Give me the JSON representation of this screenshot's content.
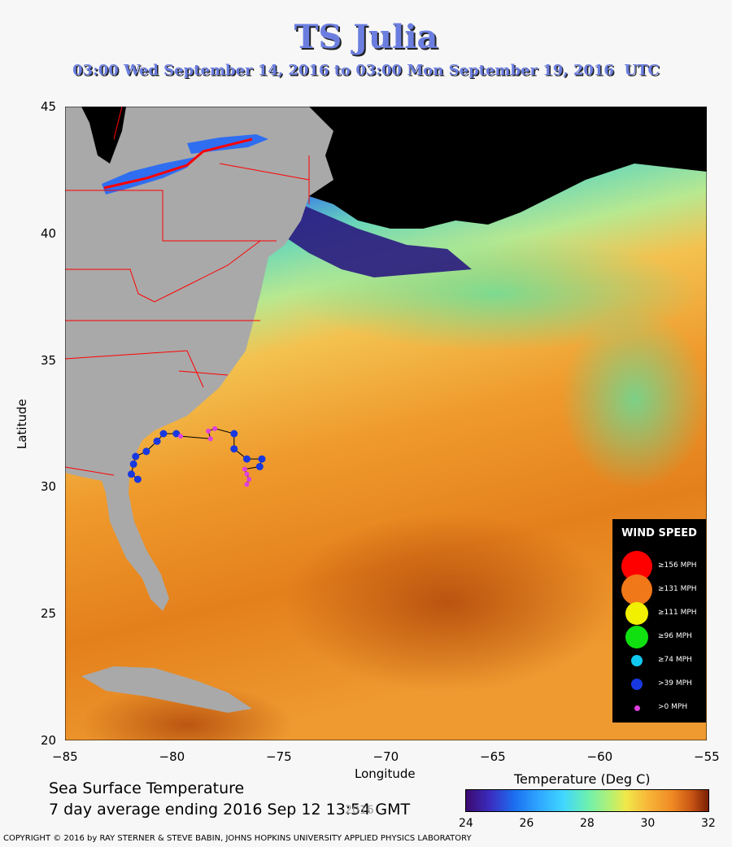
{
  "header": {
    "title": "TS Julia",
    "subtitle": "03:00 Wed September 14, 2016 to 03:00 Mon September 19, 2016  UTC"
  },
  "axes": {
    "x_label": "Longitude",
    "y_label": "Latitude",
    "x_ticks": [
      "−85",
      "−80",
      "−75",
      "−70",
      "−65",
      "−60",
      "−55"
    ],
    "y_ticks": [
      "45",
      "40",
      "35",
      "30",
      "25",
      "20"
    ],
    "lon_range": [
      -85,
      -55
    ],
    "lat_range": [
      20,
      45
    ]
  },
  "caption": {
    "line1": "Sea Surface Temperature",
    "line2": "7 day average ending 2016 Sep 12 13:54 GMT",
    "watermark": "2016"
  },
  "colorbar": {
    "title": "Temperature (Deg C)",
    "ticks": [
      "24",
      "26",
      "28",
      "30",
      "32"
    ],
    "range": [
      24,
      32
    ]
  },
  "legend": {
    "title": "WIND SPEED",
    "items": [
      {
        "label": "≥156 MPH",
        "color": "#ff0000",
        "size": "large"
      },
      {
        "label": "≥131 MPH",
        "color": "#f07818",
        "size": "large"
      },
      {
        "label": "≥111 MPH",
        "color": "#f0f000",
        "size": "medium"
      },
      {
        "label": "≥96 MPH",
        "color": "#10e010",
        "size": "medium"
      },
      {
        "label": "≥74 MPH",
        "color": "#10c8f0",
        "size": "small"
      },
      {
        "label": ">39 MPH",
        "color": "#1838e0",
        "size": "small"
      },
      {
        "label": ">0 MPH",
        "color": "#e040e0",
        "size": "tiny"
      }
    ]
  },
  "track": {
    "points": [
      {
        "lon": -81.6,
        "lat": 30.3,
        "cat": ">39 MPH"
      },
      {
        "lon": -81.9,
        "lat": 30.5,
        "cat": ">39 MPH"
      },
      {
        "lon": -81.8,
        "lat": 30.9,
        "cat": ">39 MPH"
      },
      {
        "lon": -81.7,
        "lat": 31.2,
        "cat": ">39 MPH"
      },
      {
        "lon": -81.2,
        "lat": 31.4,
        "cat": ">39 MPH"
      },
      {
        "lon": -80.7,
        "lat": 31.8,
        "cat": ">39 MPH"
      },
      {
        "lon": -80.4,
        "lat": 32.1,
        "cat": ">39 MPH"
      },
      {
        "lon": -79.8,
        "lat": 32.1,
        "cat": ">39 MPH"
      },
      {
        "lon": -79.6,
        "lat": 32.0,
        "cat": ">0 MPH"
      },
      {
        "lon": -78.2,
        "lat": 31.9,
        "cat": ">0 MPH"
      },
      {
        "lon": -78.3,
        "lat": 32.2,
        "cat": ">0 MPH"
      },
      {
        "lon": -78.0,
        "lat": 32.3,
        "cat": ">0 MPH"
      },
      {
        "lon": -77.1,
        "lat": 32.1,
        "cat": ">39 MPH"
      },
      {
        "lon": -77.1,
        "lat": 31.5,
        "cat": ">39 MPH"
      },
      {
        "lon": -76.5,
        "lat": 31.1,
        "cat": ">39 MPH"
      },
      {
        "lon": -75.8,
        "lat": 31.1,
        "cat": ">39 MPH"
      },
      {
        "lon": -75.9,
        "lat": 30.8,
        "cat": ">39 MPH"
      },
      {
        "lon": -76.6,
        "lat": 30.7,
        "cat": ">0 MPH"
      },
      {
        "lon": -76.5,
        "lat": 30.5,
        "cat": ">0 MPH"
      },
      {
        "lon": -76.4,
        "lat": 30.3,
        "cat": ">0 MPH"
      },
      {
        "lon": -76.5,
        "lat": 30.1,
        "cat": ">0 MPH"
      }
    ]
  },
  "copyright": "COPYRIGHT © 2016 by RAY STERNER & STEVE BABIN, JOHNS HOPKINS UNIVERSITY APPLIED PHYSICS LABORATORY"
}
